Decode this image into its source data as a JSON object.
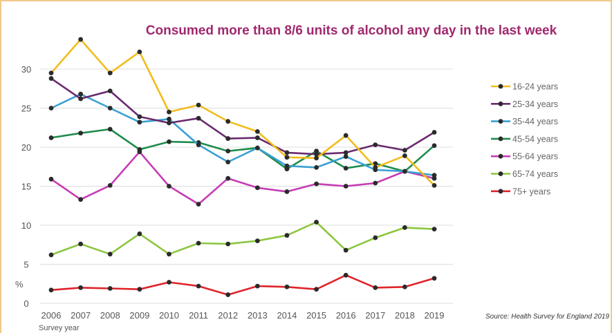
{
  "chart_data": {
    "type": "line",
    "title": "Consumed more than 8/6 units of alcohol any day in the last week",
    "xlabel": "Survey year",
    "ylabel": "%",
    "source": "Source: Health Survey for England 2019",
    "ylim": [
      0,
      30
    ],
    "yticks": [
      "0",
      "5",
      "10",
      "15",
      "20",
      "25",
      "30"
    ],
    "categories": [
      "2006",
      "2007",
      "2008",
      "2009",
      "2010",
      "2011",
      "2012",
      "2013",
      "2014",
      "2015",
      "2016",
      "2017",
      "2018",
      "2019"
    ],
    "grid": true,
    "legend_position": "right",
    "series": [
      {
        "name": "16-24 years",
        "color": "#f2bc1b",
        "values": [
          29.5,
          33.8,
          29.5,
          32.2,
          24.5,
          25.4,
          23.3,
          22.0,
          18.7,
          18.6,
          21.5,
          17.4,
          18.9,
          15.1
        ]
      },
      {
        "name": "25-34 years",
        "color": "#6a2a6e",
        "values": [
          28.8,
          26.2,
          27.2,
          23.9,
          23.1,
          23.7,
          21.1,
          21.2,
          19.3,
          19.1,
          19.3,
          20.3,
          19.6,
          21.9
        ]
      },
      {
        "name": "35-44 years",
        "color": "#3aa0d3",
        "values": [
          25.0,
          26.8,
          25.0,
          23.2,
          23.6,
          20.3,
          18.1,
          19.9,
          17.6,
          17.4,
          18.8,
          17.1,
          16.9,
          16.4
        ]
      },
      {
        "name": "45-54 years",
        "color": "#1e8c4c",
        "values": [
          21.2,
          21.8,
          22.3,
          19.7,
          20.7,
          20.6,
          19.5,
          19.9,
          17.2,
          19.5,
          17.3,
          17.9,
          16.9,
          20.2
        ]
      },
      {
        "name": "55-64 years",
        "color": "#c63bb5",
        "values": [
          15.9,
          13.3,
          15.1,
          19.4,
          15.0,
          12.7,
          16.0,
          14.8,
          14.3,
          15.3,
          15.0,
          15.4,
          16.9,
          16.0
        ]
      },
      {
        "name": "65-74 years",
        "color": "#8cc63f",
        "values": [
          6.2,
          7.6,
          6.3,
          8.9,
          6.3,
          7.7,
          7.6,
          8.0,
          8.7,
          10.4,
          6.8,
          8.4,
          9.7,
          9.5
        ]
      },
      {
        "name": "75+ years",
        "color": "#e0232a",
        "values": [
          1.7,
          2.0,
          1.9,
          1.8,
          2.7,
          2.2,
          1.1,
          2.2,
          2.1,
          1.8,
          3.6,
          2.0,
          2.1,
          3.2
        ]
      }
    ]
  }
}
